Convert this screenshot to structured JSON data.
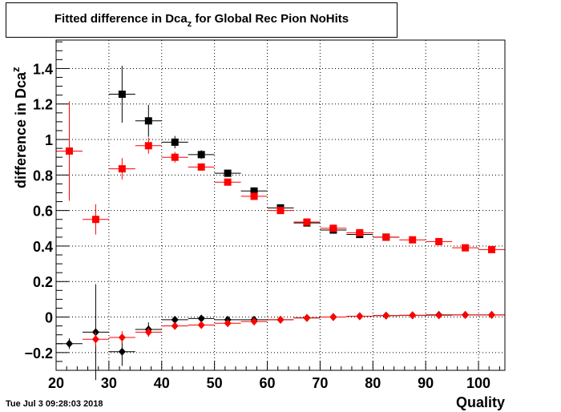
{
  "header": {
    "title_pre": "Fitted difference in Dca",
    "title_sub": "z",
    "title_post": " for Global Rec Pion NoHits"
  },
  "footer": {
    "timestamp": "Tue Jul  3 09:28:03 2018"
  },
  "chart_data": {
    "type": "scatter",
    "title": "Fitted difference in Dca_z for Global Rec Pion NoHits",
    "xlabel": "Quality",
    "ylabel_pre": "difference in Dca",
    "ylabel_sub": "z",
    "xlim": [
      20,
      105
    ],
    "ylim": [
      -0.3,
      1.56
    ],
    "x_ticks": [
      20,
      30,
      40,
      50,
      60,
      70,
      80,
      90,
      100
    ],
    "y_ticks": [
      -0.2,
      0,
      0.2,
      0.4,
      0.6,
      0.8,
      1,
      1.2,
      1.4
    ],
    "y_tick_labels": [
      "−0.2",
      "0",
      "0.2",
      "0.4",
      "0.6",
      "0.8",
      "1",
      "1.2",
      "1.4"
    ],
    "grid": true,
    "x_error": 2.5,
    "series": [
      {
        "marker": "square",
        "color": "#000000",
        "x": [
          32.5,
          37.5,
          42.5,
          47.5,
          52.5,
          57.5,
          62.5,
          67.5,
          72.5,
          77.5,
          82.5
        ],
        "y": [
          1.255,
          1.105,
          0.985,
          0.915,
          0.81,
          0.71,
          0.615,
          0.53,
          0.49,
          0.465,
          0.45
        ],
        "yerr": [
          0.16,
          0.09,
          0.035,
          0.025,
          0.02,
          0.015,
          0.012,
          0.01,
          0.01,
          0.01,
          0.01
        ]
      },
      {
        "marker": "square",
        "color": "#ff0000",
        "x": [
          22.5,
          27.5,
          32.5,
          37.5,
          42.5,
          47.5,
          52.5,
          57.5,
          62.5,
          67.5,
          72.5,
          77.5,
          82.5,
          87.5,
          92.5,
          97.5,
          102.5
        ],
        "y": [
          0.935,
          0.55,
          0.835,
          0.965,
          0.9,
          0.845,
          0.76,
          0.68,
          0.6,
          0.535,
          0.5,
          0.475,
          0.45,
          0.435,
          0.425,
          0.39,
          0.38
        ],
        "yerr": [
          0.28,
          0.085,
          0.06,
          0.045,
          0.03,
          0.02,
          0.015,
          0.012,
          0.01,
          0.01,
          0.01,
          0.01,
          0.01,
          0.01,
          0.01,
          0.01,
          0.01
        ]
      },
      {
        "marker": "diamond",
        "color": "#000000",
        "x": [
          22.5,
          27.5,
          32.5,
          37.5,
          42.5,
          47.5,
          52.5,
          57.5,
          62.5,
          67.5,
          72.5,
          77.5,
          82.5,
          87.5,
          92.5,
          97.5,
          102.5
        ],
        "y": [
          -0.15,
          -0.085,
          -0.195,
          -0.07,
          -0.015,
          -0.008,
          -0.015,
          -0.015,
          -0.015,
          -0.005,
          0.0,
          0.005,
          0.008,
          0.01,
          0.012,
          0.012,
          0.012
        ],
        "yerr": [
          0.03,
          0.27,
          0.08,
          0.04,
          0.015,
          0.01,
          0.01,
          0.01,
          0.008,
          0.008,
          0.008,
          0.008,
          0.008,
          0.008,
          0.008,
          0.008,
          0.008
        ]
      },
      {
        "marker": "diamond",
        "color": "#ff0000",
        "x": [
          27.5,
          32.5,
          37.5,
          42.5,
          47.5,
          52.5,
          57.5,
          62.5,
          67.5,
          72.5,
          77.5,
          82.5,
          87.5,
          92.5,
          97.5,
          102.5
        ],
        "y": [
          -0.125,
          -0.115,
          -0.085,
          -0.05,
          -0.045,
          -0.035,
          -0.025,
          -0.015,
          -0.005,
          0.0,
          0.005,
          0.008,
          0.01,
          0.01,
          0.012,
          0.012
        ],
        "yerr": [
          0.04,
          0.035,
          0.025,
          0.015,
          0.012,
          0.01,
          0.01,
          0.008,
          0.008,
          0.008,
          0.008,
          0.008,
          0.008,
          0.008,
          0.008,
          0.008
        ]
      }
    ]
  }
}
